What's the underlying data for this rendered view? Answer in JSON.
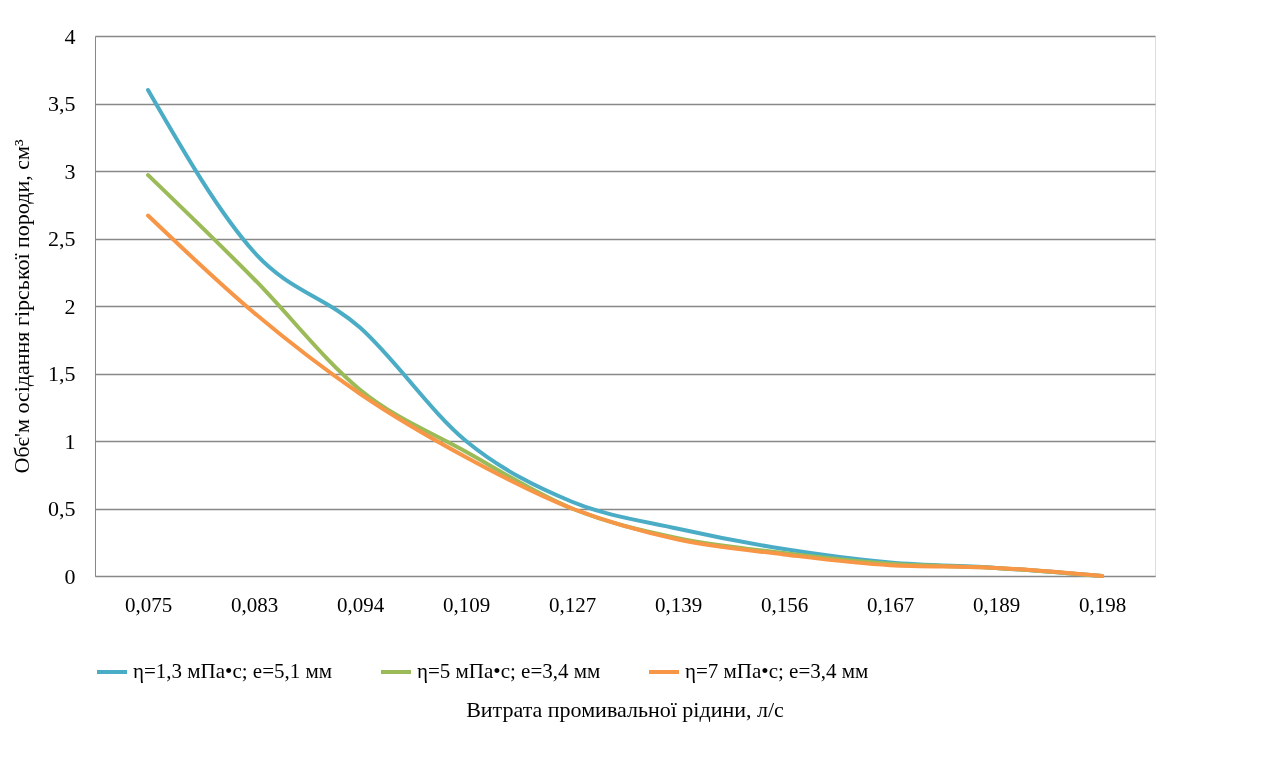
{
  "chart_data": {
    "type": "line",
    "xlabel": "Витрата промивальної рідини, л/с",
    "ylabel": "Обє'м осідання гірської породи, см³",
    "categories": [
      "0,075",
      "0,083",
      "0,094",
      "0,109",
      "0,127",
      "0,139",
      "0,156",
      "0,167",
      "0,189",
      "0,198"
    ],
    "series": [
      {
        "name": "η=1,3 мПа•с; e=5,1 мм",
        "color": "#4bacc6",
        "values": [
          3.6,
          2.4,
          1.84,
          1.0,
          0.55,
          0.35,
          0.2,
          0.1,
          0.06,
          0
        ]
      },
      {
        "name": "η=5 мПа•с; e=3,4 мм",
        "color": "#9bbb59",
        "values": [
          2.97,
          2.2,
          1.38,
          0.92,
          0.5,
          0.28,
          0.17,
          0.09,
          0.06,
          0
        ]
      },
      {
        "name": "η=7 мПа•с; e=3,4 мм",
        "color": "#f79646",
        "values": [
          2.67,
          1.95,
          1.35,
          0.88,
          0.5,
          0.27,
          0.16,
          0.08,
          0.06,
          0
        ]
      }
    ],
    "ylim": [
      0,
      4
    ],
    "yticks": [
      0,
      {
        "value": 0.5,
        "label": "0,5"
      },
      1,
      {
        "value": 1.5,
        "label": "1,5"
      },
      2,
      {
        "value": 2.5,
        "label": "2,5"
      },
      3,
      {
        "value": 3.5,
        "label": "3,5"
      },
      4
    ],
    "grid": "y",
    "legend": "bottom",
    "marker": "none",
    "line_style": "solid"
  }
}
